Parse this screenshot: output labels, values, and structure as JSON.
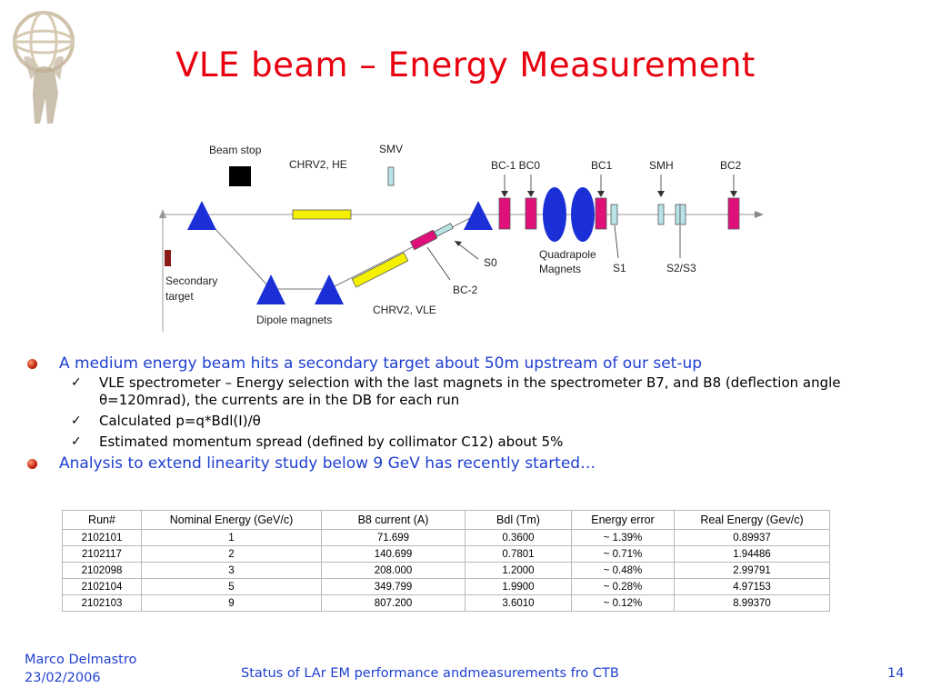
{
  "title": "VLE beam – Energy Measurement",
  "diagram": {
    "labels": {
      "beam_stop": "Beam stop",
      "chrv2_he": "CHRV2, HE",
      "smv": "SMV",
      "bc1_bc0": "BC-1 BC0",
      "bc1": "BC1",
      "smh": "SMH",
      "bc2": "BC2",
      "secondary_target_1": "Secondary",
      "secondary_target_2": "target",
      "dipole_magnets": "Dipole magnets",
      "chrv2_vle": "CHRV2, VLE",
      "bc_2": "BC-2",
      "s0": "S0",
      "quadrapole_1": "Quadrapole",
      "quadrapole_2": "Magnets",
      "s1": "S1",
      "s2s3": "S2/S3"
    },
    "colors": {
      "dipole": "#1a2fd6",
      "quadrupole": "#1a2fd6",
      "chamber": "#e0107a",
      "collimator": "#f5f000",
      "scintillator": "#b8e4e8",
      "beam_stop": "#000000",
      "target": "#8b1a1a"
    }
  },
  "bullets": [
    {
      "text": "A medium energy beam hits a secondary target about 50m upstream of our set-up",
      "sub": [
        "VLE spectrometer – Energy selection with the last magnets in the spectrometer B7, and B8 (deflection angle θ=120mrad), the currents are in the DB for each run",
        "Calculated p=q*Bdl(I)/θ",
        "Estimated momentum spread (defined by collimator C12) about 5%"
      ]
    },
    {
      "text": "Analysis to extend linearity study below 9 GeV has recently started…",
      "sub": []
    }
  ],
  "table": {
    "headers": [
      "Run#",
      "Nominal Energy (GeV/c)",
      "B8 current (A)",
      "Bdl (Tm)",
      "Energy error",
      "Real Energy (Gev/c)"
    ],
    "rows": [
      [
        "2102101",
        "1",
        "71.699",
        "0.3600",
        "~ 1.39%",
        "0.89937"
      ],
      [
        "2102117",
        "2",
        "140.699",
        "0.7801",
        "~ 0.71%",
        "1.94486"
      ],
      [
        "2102098",
        "3",
        "208.000",
        "1.2000",
        "~ 0.48%",
        "2.99791"
      ],
      [
        "2102104",
        "5",
        "349.799",
        "1.9900",
        "~ 0.28%",
        "4.97153"
      ],
      [
        "2102103",
        "9",
        "807.200",
        "3.6010",
        "~ 0.12%",
        "8.99370"
      ]
    ]
  },
  "footer": {
    "author": "Marco Delmastro",
    "date": "23/02/2006",
    "center": "Status of LAr EM performance andmeasurements fro CTB",
    "page": "14"
  }
}
